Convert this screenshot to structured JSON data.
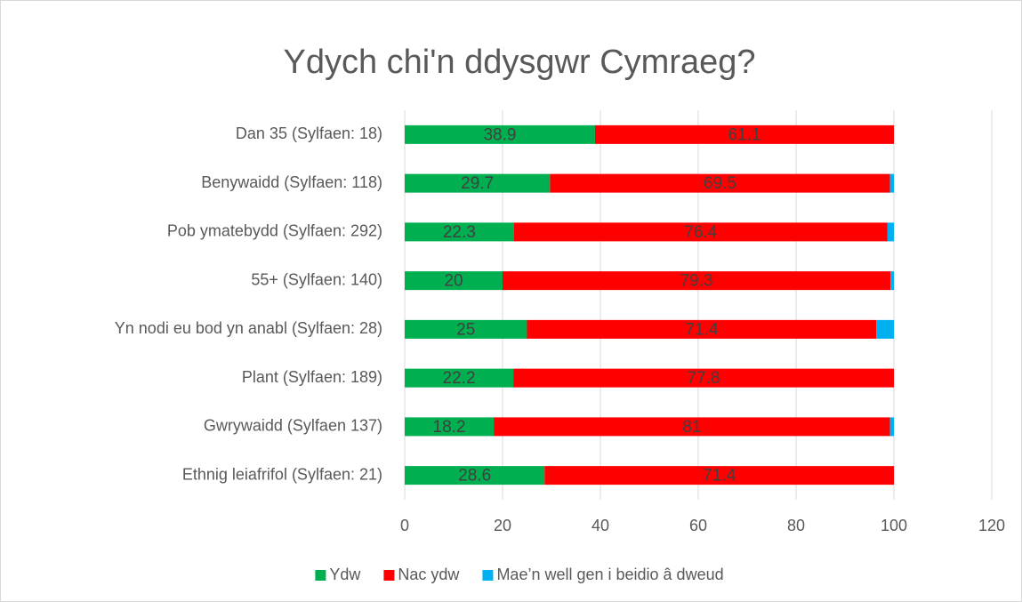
{
  "chart_data": {
    "type": "stacked_bar_horizontal",
    "title": "Ydych chi'n ddysgwr Cymraeg?",
    "categories": [
      "Dan 35 (Sylfaen: 18)",
      "Benywaidd (Sylfaen: 118)",
      "Pob ymatebydd (Sylfaen: 292)",
      "55+ (Sylfaen: 140)",
      "Yn nodi eu bod yn anabl (Sylfaen: 28)",
      "Plant (Sylfaen: 189)",
      "Gwrywaidd (Sylfaen 137)",
      "Ethnig leiafrifol (Sylfaen: 21)"
    ],
    "series": [
      {
        "name": "Ydw",
        "color": "#00b050",
        "labels": true,
        "values": [
          38.9,
          29.7,
          22.3,
          20,
          25,
          22.2,
          18.2,
          28.6
        ]
      },
      {
        "name": "Nac ydw",
        "color": "#ff0000",
        "labels": true,
        "values": [
          61.1,
          69.5,
          76.4,
          79.3,
          71.4,
          77.8,
          81,
          71.4
        ]
      },
      {
        "name": "Mae’n well gen i beidio â dweud",
        "color": "#00b0f0",
        "labels": false,
        "values": [
          0,
          0.8,
          1.3,
          0.7,
          3.6,
          0,
          0.8,
          0
        ]
      }
    ],
    "xlim": [
      0,
      120
    ],
    "xticks": [
      0,
      20,
      40,
      60,
      80,
      100,
      120
    ],
    "grid": true,
    "legend": "bottom"
  }
}
